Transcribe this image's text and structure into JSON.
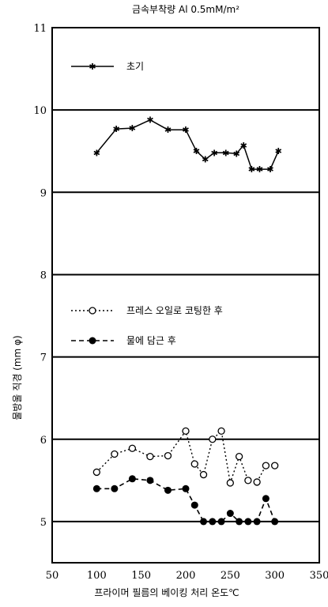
{
  "chart_data": {
    "type": "line",
    "title": "금속부착량  Al  0.5mM/m²",
    "xlabel": "프라이머 필름의 베이킹 처리 온도℃",
    "ylabel": "물방울 직경  (mm φ)",
    "xlim": [
      50,
      350
    ],
    "ylim": [
      4.5,
      11
    ],
    "xticks": [
      50,
      100,
      150,
      200,
      250,
      300,
      350
    ],
    "yticks": [
      5,
      6,
      7,
      8,
      9,
      10,
      11
    ],
    "horizontal_gridlines": [
      5,
      6,
      7,
      8,
      9,
      10,
      11
    ],
    "legend_placement": "inside, upper-left",
    "series": [
      {
        "name": "초기",
        "style": "solid line, star markers",
        "x": [
          100,
          122,
          140,
          160,
          180,
          200,
          212,
          222,
          232,
          245,
          257,
          265,
          274,
          283,
          295,
          304
        ],
        "y": [
          9.48,
          9.77,
          9.78,
          9.88,
          9.76,
          9.76,
          9.5,
          9.4,
          9.48,
          9.48,
          9.47,
          9.57,
          9.28,
          9.28,
          9.28,
          9.5
        ]
      },
      {
        "name": "프레스 오일로 코팅한 후",
        "style": "dotted line, open circle markers",
        "x": [
          100,
          120,
          140,
          160,
          180,
          200,
          210,
          220,
          230,
          240,
          250,
          260,
          270,
          280,
          290,
          300
        ],
        "y": [
          5.6,
          5.82,
          5.89,
          5.79,
          5.8,
          6.1,
          5.7,
          5.57,
          6.0,
          6.1,
          5.47,
          5.79,
          5.5,
          5.48,
          5.68,
          5.68
        ]
      },
      {
        "name": "물에 담근 후",
        "style": "dashed line, filled circle markers",
        "x": [
          100,
          120,
          140,
          160,
          180,
          200,
          210,
          220,
          230,
          240,
          250,
          260,
          270,
          280,
          290,
          300
        ],
        "y": [
          5.4,
          5.4,
          5.52,
          5.5,
          5.38,
          5.4,
          5.2,
          5.0,
          5.0,
          5.0,
          5.1,
          5.0,
          5.0,
          5.0,
          5.28,
          5.0
        ]
      }
    ]
  }
}
